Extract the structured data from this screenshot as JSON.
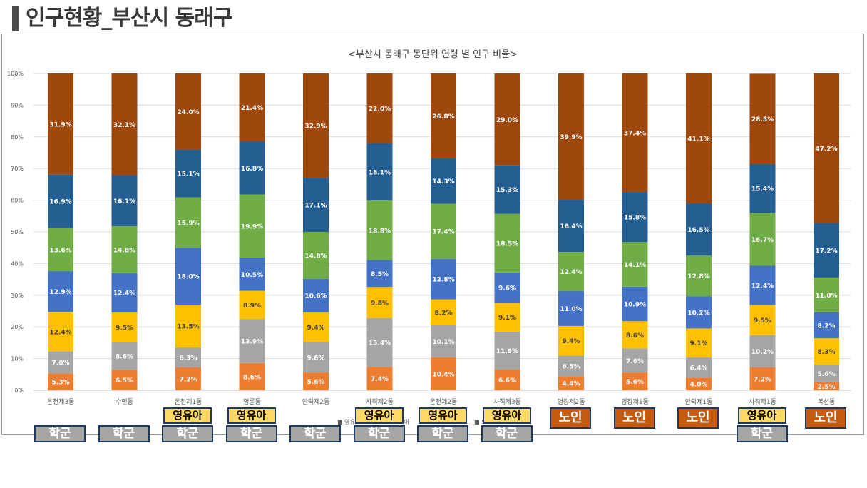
{
  "page": {
    "title": "인구현황_부산시 동래구"
  },
  "colors": {
    "a0_9": "#ed7d31",
    "a10_19": "#a5a5a5",
    "a20_29": "#ffc000",
    "a30_39": "#4472c4",
    "a40_49": "#70ad47",
    "a50_59": "#255e91",
    "a60p": "#9e480e"
  },
  "chart_data": {
    "type": "bar",
    "stacked": "percent",
    "title": "<부산시 동래구 동단위 연령 별 인구 비율>",
    "categories": [
      "온천제3동",
      "수민동",
      "온천제1동",
      "명륜동",
      "안락제2동",
      "사직제2동",
      "온천제2동",
      "사직제3동",
      "명장제2동",
      "명장제1동",
      "안락제1동",
      "사직제1동",
      "복산동"
    ],
    "series": [
      {
        "key": "a0_9",
        "values": [
          5.3,
          6.5,
          7.2,
          8.6,
          5.6,
          7.4,
          10.4,
          6.6,
          4.4,
          5.6,
          4.0,
          7.2,
          2.5
        ]
      },
      {
        "key": "a10_19",
        "values": [
          7.0,
          8.6,
          6.3,
          13.9,
          9.6,
          15.4,
          10.1,
          11.9,
          6.5,
          7.6,
          6.4,
          10.2,
          5.6
        ]
      },
      {
        "key": "a20_29",
        "values": [
          12.4,
          9.5,
          13.5,
          8.9,
          9.4,
          9.8,
          8.2,
          9.1,
          9.4,
          8.6,
          9.1,
          9.5,
          8.3
        ]
      },
      {
        "key": "a30_39",
        "values": [
          12.9,
          12.4,
          18.0,
          10.5,
          10.6,
          8.5,
          12.8,
          9.6,
          11.0,
          10.9,
          10.2,
          12.4,
          8.2
        ]
      },
      {
        "key": "a40_49",
        "values": [
          13.6,
          14.8,
          15.9,
          19.9,
          14.8,
          18.8,
          17.4,
          18.5,
          12.4,
          14.1,
          12.8,
          16.7,
          11.0
        ]
      },
      {
        "key": "a50_59",
        "values": [
          16.9,
          16.1,
          15.1,
          16.8,
          17.1,
          18.1,
          14.3,
          15.3,
          16.4,
          15.8,
          16.5,
          15.4,
          17.2
        ]
      },
      {
        "key": "a60p",
        "values": [
          31.9,
          32.1,
          24.0,
          21.4,
          32.9,
          22.0,
          26.8,
          29.0,
          39.9,
          37.4,
          41.1,
          28.5,
          47.2
        ]
      }
    ],
    "y_ticks": [
      "0%",
      "10%",
      "20%",
      "30%",
      "40%",
      "50%",
      "60%",
      "70%",
      "80%",
      "90%",
      "100%"
    ],
    "ylim": [
      0,
      100
    ],
    "grid": true,
    "legend_position": "bottom",
    "legend_partial_text": [
      "■ 영유",
      "0대",
      "■ 50"
    ]
  },
  "tags": {
    "school": "학군",
    "infant": "영유아",
    "senior": "노인",
    "school_for": [
      0,
      1,
      2,
      3,
      4,
      5,
      6,
      7,
      11
    ],
    "infant_for": [
      2,
      3,
      5,
      6,
      7,
      11
    ],
    "senior_for": [
      8,
      9,
      10,
      12
    ]
  }
}
